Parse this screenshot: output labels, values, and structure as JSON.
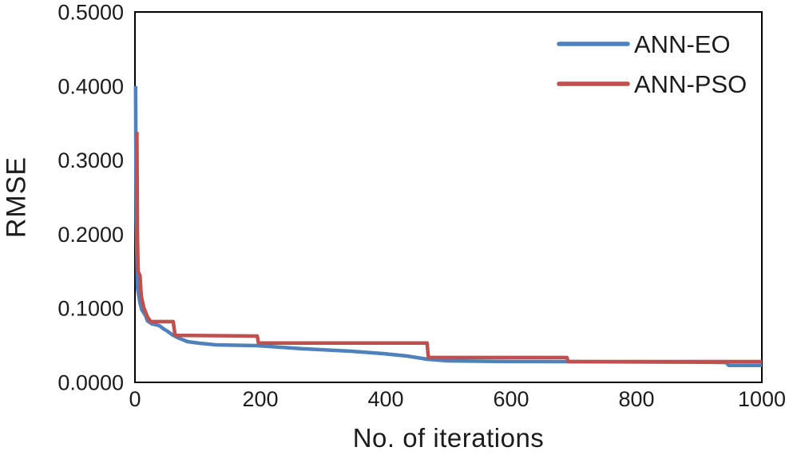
{
  "chart_data": {
    "type": "line",
    "title": "",
    "xlabel": "No. of iterations",
    "ylabel": "RMSE",
    "xlim": [
      0,
      1000
    ],
    "ylim": [
      0.0,
      0.5
    ],
    "x_ticks": [
      0,
      200,
      400,
      600,
      800,
      1000
    ],
    "x_tick_labels": [
      "0",
      "200",
      "400",
      "600",
      "800",
      "1000"
    ],
    "y_ticks": [
      0.0,
      0.1,
      0.2,
      0.3,
      0.4,
      0.5
    ],
    "y_tick_labels": [
      "0.0000",
      "0.1000",
      "0.2000",
      "0.3000",
      "0.4000",
      "0.5000"
    ],
    "grid": false,
    "frame": "box",
    "legend_position": "top-right-inside",
    "axis_color": "#000000",
    "text_color": "#1c1c1c",
    "series": [
      {
        "name": "ANN-EO",
        "color": "#4F81BD",
        "points": [
          [
            1,
            0.4
          ],
          [
            1.5,
            0.3
          ],
          [
            2,
            0.22
          ],
          [
            3,
            0.17
          ],
          [
            4,
            0.128
          ],
          [
            8,
            0.107
          ],
          [
            11,
            0.098
          ],
          [
            17,
            0.09
          ],
          [
            20,
            0.083
          ],
          [
            27,
            0.079
          ],
          [
            39,
            0.0765
          ],
          [
            46,
            0.072
          ],
          [
            52,
            0.069
          ],
          [
            59,
            0.0645
          ],
          [
            69,
            0.06
          ],
          [
            84,
            0.055
          ],
          [
            103,
            0.0528
          ],
          [
            129,
            0.0507
          ],
          [
            195,
            0.0496
          ],
          [
            269,
            0.0453
          ],
          [
            345,
            0.042
          ],
          [
            396,
            0.0388
          ],
          [
            434,
            0.0356
          ],
          [
            466,
            0.0313
          ],
          [
            498,
            0.0291
          ],
          [
            574,
            0.0282
          ],
          [
            689,
            0.028
          ],
          [
            900,
            0.0272
          ],
          [
            943,
            0.0268
          ],
          [
            947,
            0.023
          ],
          [
            1000,
            0.0228
          ]
        ]
      },
      {
        "name": "ANN-PSO",
        "color": "#C0504D",
        "points": [
          [
            3,
            0.338
          ],
          [
            4,
            0.2
          ],
          [
            5,
            0.15
          ],
          [
            8,
            0.144
          ],
          [
            10,
            0.117
          ],
          [
            14,
            0.101
          ],
          [
            20,
            0.0884
          ],
          [
            25,
            0.082
          ],
          [
            61,
            0.082
          ],
          [
            64,
            0.0635
          ],
          [
            195,
            0.0625
          ],
          [
            197,
            0.053
          ],
          [
            466,
            0.053
          ],
          [
            468,
            0.0335
          ],
          [
            689,
            0.0335
          ],
          [
            691,
            0.028
          ],
          [
            1000,
            0.028
          ]
        ]
      }
    ]
  }
}
